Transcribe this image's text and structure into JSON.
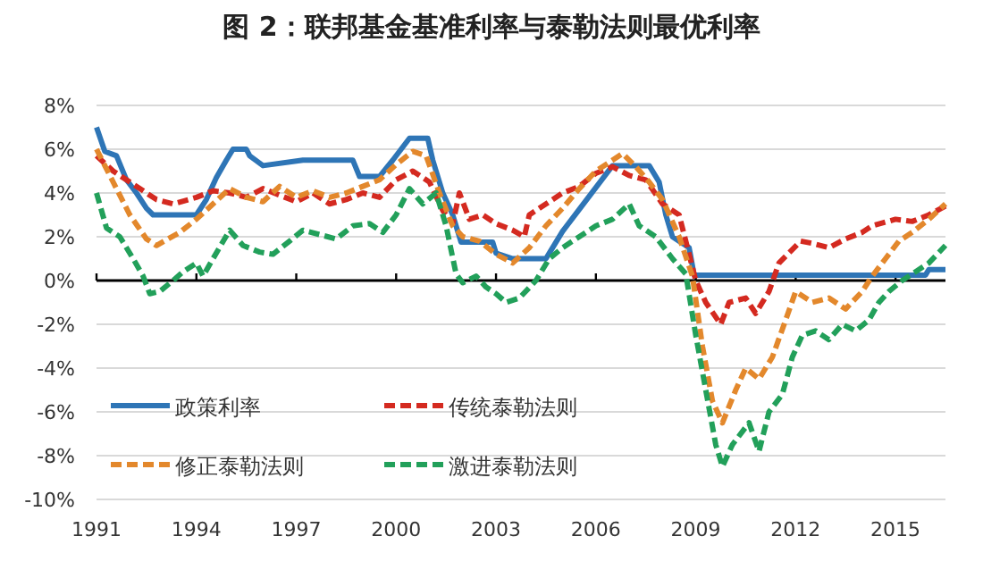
{
  "chart_data": {
    "type": "line",
    "title": "图 2：联邦基金基准利率与泰勒法则最优利率",
    "xlim": [
      1991,
      2016.5
    ],
    "xticks": [
      1991,
      1994,
      1997,
      2000,
      2003,
      2006,
      2009,
      2012,
      2015
    ],
    "ylim": [
      -10,
      8
    ],
    "yticks": [
      {
        "value": 8,
        "label": "8%"
      },
      {
        "value": 6,
        "label": "6%"
      },
      {
        "value": 4,
        "label": "4%"
      },
      {
        "value": 2,
        "label": "2%"
      },
      {
        "value": 0,
        "label": "0%"
      },
      {
        "value": -2,
        "label": "-2%"
      },
      {
        "value": -4,
        "label": "-4%"
      },
      {
        "value": -6,
        "label": "-6%"
      },
      {
        "value": -8,
        "label": "-8%"
      },
      {
        "value": -10,
        "label": "-10%"
      }
    ],
    "grid": "y",
    "legend": "bottom left",
    "marker": "none",
    "series": [
      {
        "name": "政策利率",
        "color": "#2e75b6",
        "line_style": "solid",
        "x": [
          1991.0,
          1991.25,
          1991.6,
          1991.9,
          1992.2,
          1992.5,
          1992.7,
          1994.0,
          1994.3,
          1994.6,
          1994.9,
          1995.1,
          1995.5,
          1995.6,
          1996.0,
          1997.2,
          1998.7,
          1998.9,
          1999.5,
          1999.9,
          2000.4,
          2000.95,
          2001.1,
          2001.4,
          2001.7,
          2001.95,
          2002.9,
          2003.0,
          2003.5,
          2004.5,
          2004.6,
          2005.0,
          2005.5,
          2006.0,
          2006.5,
          2007.6,
          2007.9,
          2008.1,
          2008.3,
          2008.8,
          2008.95,
          2015.9,
          2016.0,
          2016.5
        ],
        "values": [
          7.0,
          5.9,
          5.7,
          4.6,
          4.0,
          3.3,
          3.0,
          3.0,
          3.7,
          4.7,
          5.5,
          6.0,
          6.0,
          5.7,
          5.25,
          5.5,
          5.5,
          4.75,
          4.75,
          5.5,
          6.5,
          6.5,
          5.5,
          4.0,
          3.0,
          1.75,
          1.75,
          1.25,
          1.0,
          1.0,
          1.25,
          2.25,
          3.25,
          4.25,
          5.25,
          5.25,
          4.5,
          3.0,
          2.0,
          1.5,
          0.25,
          0.25,
          0.5,
          0.5
        ]
      },
      {
        "name": "传统泰勒法则",
        "color": "#d42a20",
        "line_style": "dashed",
        "x": [
          1991.0,
          1991.5,
          1992.0,
          1992.8,
          1993.3,
          1994.0,
          1994.5,
          1995.0,
          1995.5,
          1996.0,
          1996.5,
          1997.0,
          1997.5,
          1998.0,
          1998.5,
          1999.0,
          1999.5,
          2000.0,
          2000.5,
          2001.0,
          2001.4,
          2001.7,
          2001.9,
          2002.2,
          2002.6,
          2003.0,
          2003.5,
          2003.85,
          2004.0,
          2004.5,
          2005.0,
          2005.5,
          2006.0,
          2006.5,
          2007.0,
          2007.5,
          2008.0,
          2008.5,
          2009.0,
          2009.3,
          2009.75,
          2010.0,
          2010.5,
          2010.8,
          2011.2,
          2011.5,
          2012.15,
          2012.5,
          2013.0,
          2013.5,
          2014.0,
          2014.3,
          2015.0,
          2015.5,
          2016.0,
          2016.5
        ],
        "values": [
          5.7,
          5.0,
          4.5,
          3.7,
          3.5,
          3.8,
          4.1,
          4.0,
          3.8,
          4.2,
          3.9,
          3.6,
          4.0,
          3.5,
          3.7,
          4.0,
          3.8,
          4.6,
          5.0,
          4.5,
          3.2,
          2.6,
          4.0,
          2.8,
          3.0,
          2.6,
          2.3,
          2.0,
          3.0,
          3.5,
          4.0,
          4.3,
          4.9,
          5.2,
          4.8,
          4.6,
          3.5,
          3.0,
          0.0,
          -1.0,
          -2.0,
          -1.0,
          -0.8,
          -1.5,
          -0.5,
          0.8,
          1.8,
          1.7,
          1.5,
          1.9,
          2.2,
          2.5,
          2.8,
          2.7,
          3.0,
          3.4
        ]
      },
      {
        "name": "修正泰勒法则",
        "color": "#e3882c",
        "line_style": "dashed",
        "x": [
          1991.0,
          1991.5,
          1992.0,
          1992.5,
          1992.8,
          1993.5,
          1994.0,
          1994.5,
          1995.0,
          1995.5,
          1996.0,
          1996.5,
          1997.0,
          1997.5,
          1998.0,
          1998.5,
          1999.0,
          1999.5,
          2000.0,
          2000.5,
          2000.9,
          2001.3,
          2001.7,
          2002.0,
          2002.5,
          2003.0,
          2003.5,
          2004.0,
          2004.5,
          2005.0,
          2005.5,
          2006.0,
          2006.5,
          2006.8,
          2007.2,
          2007.6,
          2008.0,
          2008.5,
          2008.9,
          2009.2,
          2009.5,
          2009.8,
          2010.2,
          2010.5,
          2010.9,
          2011.3,
          2011.7,
          2012.0,
          2012.5,
          2013.0,
          2013.5,
          2014.0,
          2014.3,
          2014.7,
          2015.1,
          2015.5,
          2016.0,
          2016.5
        ],
        "values": [
          6.0,
          4.5,
          3.0,
          1.9,
          1.6,
          2.2,
          2.8,
          3.5,
          4.2,
          3.8,
          3.6,
          4.3,
          3.8,
          4.1,
          3.8,
          4.0,
          4.3,
          4.6,
          5.3,
          5.9,
          5.7,
          4.0,
          2.5,
          2.0,
          1.8,
          1.2,
          0.8,
          1.5,
          2.5,
          3.3,
          4.2,
          5.0,
          5.5,
          5.8,
          5.2,
          4.5,
          3.7,
          2.0,
          0.2,
          -3.0,
          -5.5,
          -6.5,
          -5.0,
          -4.0,
          -4.5,
          -3.5,
          -1.8,
          -0.5,
          -1.0,
          -0.8,
          -1.3,
          -0.5,
          0.2,
          1.0,
          1.8,
          2.2,
          2.8,
          3.5
        ]
      },
      {
        "name": "激进泰勒法则",
        "color": "#22a05a",
        "line_style": "dashed",
        "x": [
          1991.0,
          1991.3,
          1991.7,
          1992.1,
          1992.4,
          1992.6,
          1992.9,
          1993.3,
          1993.6,
          1994.0,
          1994.2,
          1994.5,
          1995.0,
          1995.4,
          1995.9,
          1996.3,
          1996.8,
          1997.2,
          1997.7,
          1998.2,
          1998.7,
          1999.2,
          1999.6,
          2000.0,
          2000.4,
          2000.8,
          2001.2,
          2001.5,
          2001.8,
          2002.0,
          2002.4,
          2002.7,
          2003.0,
          2003.3,
          2003.7,
          2004.2,
          2004.6,
          2005.0,
          2005.5,
          2006.0,
          2006.5,
          2007.0,
          2007.3,
          2007.8,
          2008.3,
          2008.7,
          2009.0,
          2009.3,
          2009.6,
          2009.8,
          2010.1,
          2010.6,
          2010.9,
          2011.2,
          2011.6,
          2011.9,
          2012.2,
          2012.6,
          2013.0,
          2013.4,
          2013.8,
          2014.2,
          2014.5,
          2014.8,
          2015.2,
          2015.5,
          2016.0,
          2016.5
        ],
        "values": [
          4.0,
          2.4,
          2.0,
          1.0,
          0.2,
          -0.6,
          -0.5,
          0.0,
          0.4,
          0.8,
          0.2,
          1.0,
          2.3,
          1.6,
          1.3,
          1.2,
          1.8,
          2.3,
          2.1,
          1.9,
          2.5,
          2.6,
          2.2,
          3.0,
          4.2,
          3.5,
          4.0,
          2.5,
          0.3,
          -0.1,
          0.2,
          -0.3,
          -0.6,
          -1.0,
          -0.8,
          0.0,
          1.0,
          1.5,
          2.0,
          2.5,
          2.8,
          3.5,
          2.5,
          2.0,
          1.0,
          0.3,
          -2.5,
          -5.0,
          -7.5,
          -8.5,
          -7.5,
          -6.5,
          -7.8,
          -6.0,
          -5.2,
          -3.5,
          -2.5,
          -2.3,
          -2.7,
          -2.0,
          -2.3,
          -1.8,
          -1.0,
          -0.5,
          0.0,
          0.3,
          0.8,
          1.6
        ]
      }
    ]
  }
}
